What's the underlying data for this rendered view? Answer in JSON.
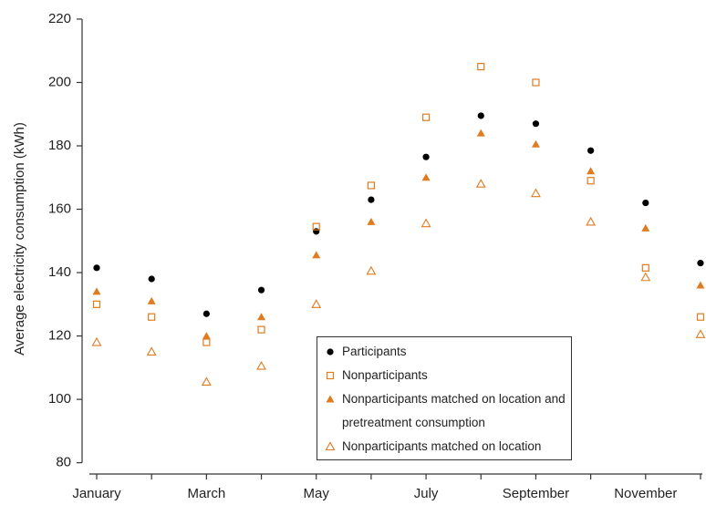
{
  "chart_data": {
    "type": "scatter",
    "y_label": "Average electricity consumption (kWh)",
    "categories": [
      "January",
      null,
      "March",
      null,
      "May",
      null,
      "July",
      null,
      "September",
      null,
      "November",
      null
    ],
    "ylim": [
      75,
      222
    ],
    "yticks": [
      80,
      100,
      120,
      140,
      160,
      180,
      200,
      220
    ],
    "series": [
      {
        "name": "Participants",
        "color": "#000000",
        "marker": "filled-circle",
        "values": [
          141.5,
          138,
          127,
          134.5,
          153,
          163,
          176.5,
          189.5,
          187,
          178.5,
          162,
          143
        ]
      },
      {
        "name": "Nonparticipants",
        "color": "#e07b20",
        "marker": "open-square",
        "values": [
          130,
          126,
          118,
          122,
          154.5,
          167.5,
          189,
          205,
          200,
          169,
          141.5,
          126
        ]
      },
      {
        "name": "Nonparticipants matched on location and pretreatment consumption",
        "color": "#e07b20",
        "marker": "filled-triangle",
        "values": [
          134,
          131,
          120,
          126,
          145.5,
          156,
          170,
          184,
          180.5,
          172,
          154,
          136
        ]
      },
      {
        "name": "Nonparticipants matched on location",
        "color": "#e07b20",
        "marker": "open-triangle",
        "values": [
          118,
          115,
          105.5,
          110.5,
          130,
          140.5,
          155.5,
          168,
          165,
          156,
          138.5,
          120.5
        ]
      }
    ]
  }
}
